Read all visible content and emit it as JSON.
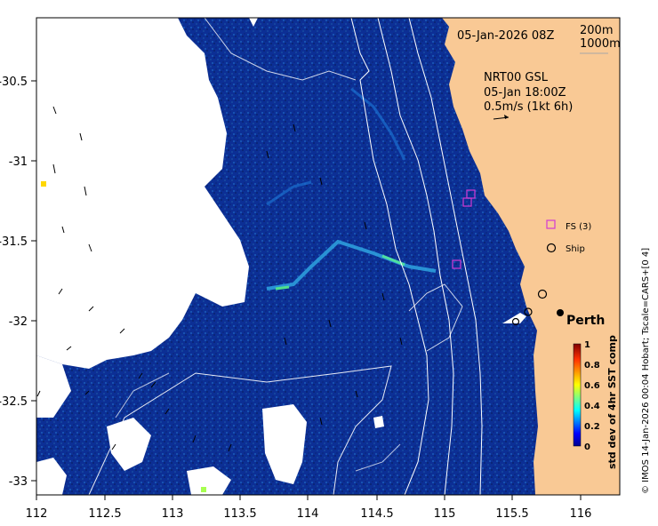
{
  "map": {
    "date_label": "05-Jan-2026 08Z",
    "contour_label_1": "200m",
    "contour_label_2": "1000m",
    "current_title": "NRT00 GSL",
    "current_time": "05-Jan 18:00Z",
    "current_scale": "0.5m/s (1kt 6h)",
    "legend_fs": "FS (3)",
    "legend_ship": "Ship",
    "city": "Perth",
    "credit": "© IMOS 14-Jan-2026 00:04 Hobart; Tscale=CARS+[0 4]"
  },
  "colorbar": {
    "label": "std dev of 4hr SST comp",
    "ticks": [
      "0",
      "0.2",
      "0.4",
      "0.6",
      "0.8",
      "1"
    ]
  },
  "axes": {
    "lon_ticks": [
      "112",
      "112.5",
      "113",
      "113.5",
      "114",
      "114.5",
      "115",
      "115.5",
      "116"
    ],
    "lat_ticks": [
      "-30.5",
      "-31",
      "-31.5",
      "-32",
      "-32.5",
      "-33"
    ]
  },
  "colors": {
    "ocean": "#0b2e8f",
    "land": "#f9c995",
    "fs_marker": "#d23ad2",
    "contour": "#ffffff"
  }
}
